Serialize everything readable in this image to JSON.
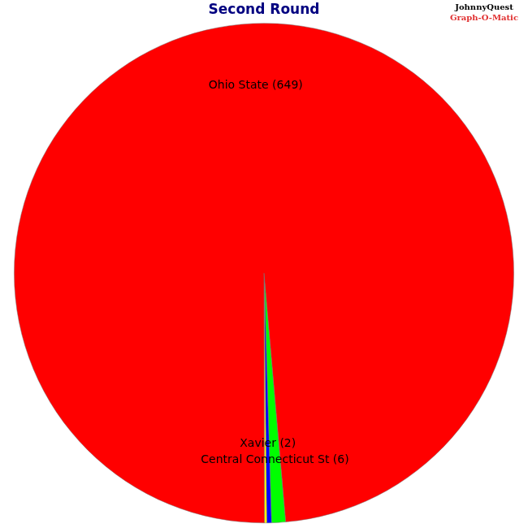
{
  "chart_data": {
    "type": "pie",
    "title": "Second Round",
    "categories": [
      "Central Connecticut St",
      "Xavier",
      null,
      "Ohio State"
    ],
    "values": [
      6,
      2,
      1,
      649
    ],
    "value_labels": [
      "Central Connecticut St (6)",
      "Xavier (2)",
      null,
      "Ohio State (649)"
    ],
    "colors": [
      "#00ff00",
      "#0000ff",
      "#ffff00",
      "#ff0000"
    ],
    "data_labels": true
  },
  "logo": [
    "JohnnyQuest",
    "Graph-O-Matic"
  ]
}
